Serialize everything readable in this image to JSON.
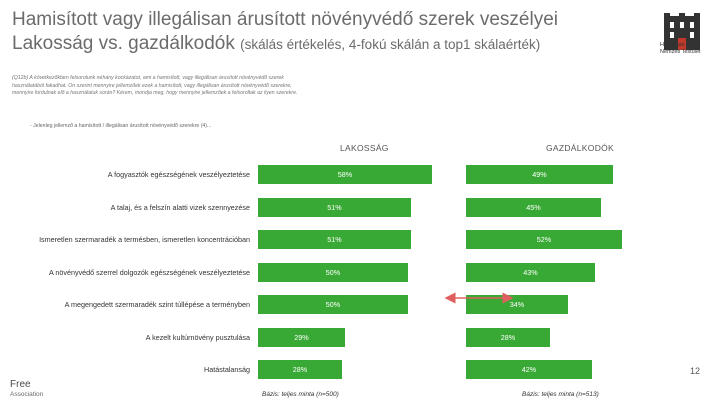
{
  "header": {
    "title_line1": "Hamisított vagy illegálisan árusított növényvédő szerek veszélyei",
    "title_line2_main": "Lakosság vs. gazdálkodók ",
    "title_line2_small": "(skálás értékelés, 4-fokú skálán a top1 skálaérték)"
  },
  "logo": {
    "icon": "castle-logo-icon",
    "line1": "Hamisítás Elleni",
    "line2": "Nemzeti Testület"
  },
  "question_text": "(Q12b) A következőkben felsorolunk néhány kockázatot, ami a hamisított, vagy illegálisan árusított növényvédő szerek használatából fakadhat. On szerint mennyire jellemzőek ezek a hamisított, vagy illegálisan árusított növényvédő szerekre, mennyire fordulnak elő a használatuk során? Kérem, mondja meg, hogy mennyire jellemzőek a felsoroltak az ilyen szerekre.",
  "base_note": "- Jelenleg jellemző a hamisított / illegálisan árusított növényvédő szerekre (4)...",
  "columns": {
    "left": "LAKOSSÁG",
    "right": "GAZDÁLKODÓK"
  },
  "chart_data": {
    "type": "bar",
    "categories": [
      "A fogyasztók egészségének veszélyeztetése",
      "A talaj, és a felszín alatti vizek szennyezése",
      "Ismeretlen szermaradék a termésben, ismeretlen koncentrációban",
      "A növényvédő szerrel dolgozók egészségének veszélyeztetése",
      "A megengedett szermaradék szint túllépése a terményben",
      "A kezelt kultúrnövény pusztulása",
      "Hatástalanság"
    ],
    "series": [
      {
        "name": "LAKOSSÁG",
        "values": [
          58,
          51,
          51,
          50,
          50,
          29,
          28
        ],
        "labels": [
          "58%",
          "51%",
          "51%",
          "50%",
          "50%",
          "29%",
          "28%"
        ]
      },
      {
        "name": "GAZDÁLKODÓK",
        "values": [
          49,
          45,
          52,
          43,
          34,
          28,
          42
        ],
        "labels": [
          "49%",
          "45%",
          "52%",
          "43%",
          "34%",
          "28%",
          "42%"
        ]
      }
    ],
    "highlighted_difference": "A megengedett szermaradék szint túllépése a terményben",
    "bar_color": "#39a935"
  },
  "footers": {
    "left": "Bázis: teljes minta (n=500)",
    "right": "Bázis: teljes minta (n=513)"
  },
  "page_number": "12",
  "brand": {
    "name": "Free",
    "sub": "Association"
  }
}
